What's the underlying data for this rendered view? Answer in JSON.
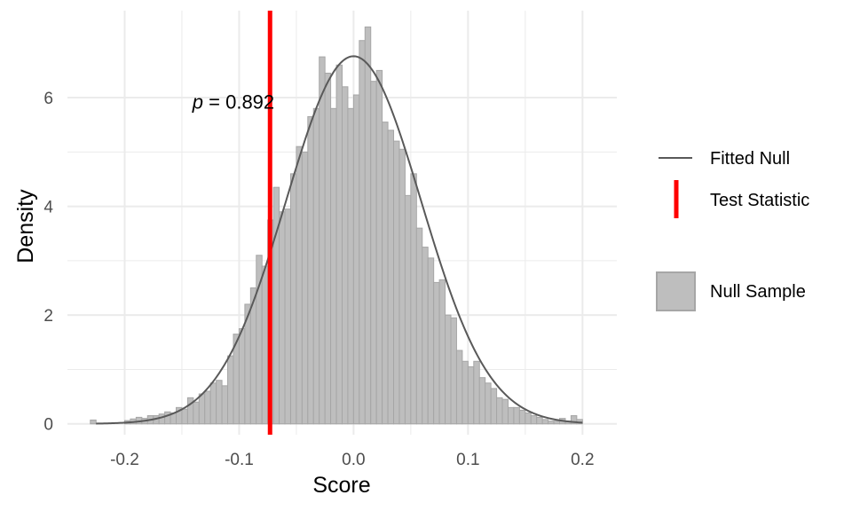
{
  "chart_data": {
    "type": "bar",
    "title": "",
    "xlabel": "Score",
    "ylabel": "Density",
    "xlim": [
      -0.25,
      0.23
    ],
    "ylim": [
      -0.2,
      7.6
    ],
    "x_ticks": [
      -0.2,
      -0.1,
      0.0,
      0.1,
      0.2
    ],
    "x_tick_labels": [
      "-0.2",
      "-0.1",
      "0.0",
      "0.1",
      "0.2"
    ],
    "y_ticks": [
      0,
      2,
      4,
      6
    ],
    "y_tick_labels": [
      "0",
      "2",
      "4",
      "6"
    ],
    "grid": true,
    "legend_position": "right",
    "colors": {
      "bars_fill": "#bebebe",
      "bars_stroke": "#a6a6a6",
      "fitted": "#595959",
      "test_stat": "#ff0000",
      "grid": "#ebebeb"
    },
    "histogram": {
      "name": "Null Sample",
      "bin_start": -0.23,
      "bin_width": 0.005,
      "density": [
        0.07,
        0.0,
        0.0,
        0.0,
        0.0,
        0.0,
        0.06,
        0.09,
        0.12,
        0.1,
        0.15,
        0.15,
        0.18,
        0.22,
        0.2,
        0.3,
        0.27,
        0.48,
        0.4,
        0.55,
        0.6,
        0.75,
        0.8,
        0.7,
        1.25,
        1.65,
        1.75,
        2.2,
        2.5,
        3.1,
        2.9,
        3.75,
        4.35,
        3.9,
        3.95,
        4.6,
        5.1,
        5.0,
        5.65,
        5.8,
        6.75,
        6.45,
        5.8,
        6.6,
        6.2,
        5.8,
        6.05,
        7.05,
        7.3,
        6.3,
        6.5,
        5.55,
        5.4,
        5.2,
        5.05,
        4.2,
        4.6,
        3.6,
        3.25,
        3.05,
        2.6,
        2.65,
        2.0,
        1.95,
        1.35,
        1.15,
        1.05,
        1.15,
        0.85,
        0.75,
        0.65,
        0.48,
        0.45,
        0.3,
        0.3,
        0.25,
        0.2,
        0.15,
        0.12,
        0.08,
        0.05,
        0.05,
        0.1,
        0.05,
        0.15,
        0.08
      ]
    },
    "fitted_null": {
      "name": "Fitted Null",
      "mean": 0.0,
      "sd": 0.059,
      "x_range": [
        -0.225,
        0.2
      ]
    },
    "test_statistic": {
      "name": "Test Statistic",
      "value": -0.073
    },
    "annotation": {
      "p_symbol": "p",
      "text": " = 0.892",
      "x": -0.105,
      "y": 5.8
    },
    "legend": [
      {
        "label": "Fitted Null",
        "kind": "line"
      },
      {
        "label": "Test Statistic",
        "kind": "vline"
      },
      {
        "label": "Null Sample",
        "kind": "box"
      }
    ]
  }
}
